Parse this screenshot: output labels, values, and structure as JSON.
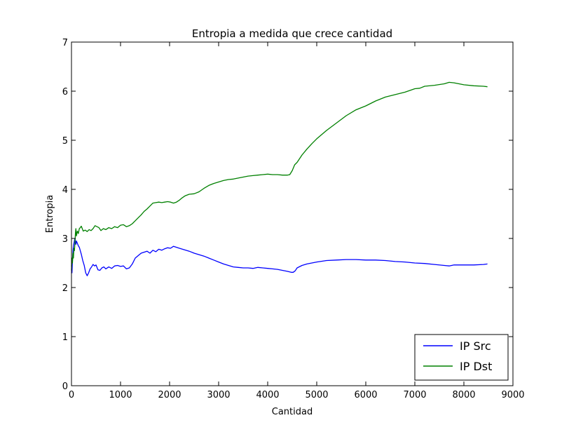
{
  "chart_data": {
    "type": "line",
    "title": "Entropia a medida que crece cantidad",
    "xlabel": "Cantidad",
    "ylabel": "Entropia",
    "xlim": [
      0,
      9000
    ],
    "ylim": [
      0,
      7
    ],
    "xticks": [
      0,
      1000,
      2000,
      3000,
      4000,
      5000,
      6000,
      7000,
      8000,
      9000
    ],
    "xtick_labels": [
      "0",
      "1000",
      "2000",
      "3000",
      "4000",
      "5000",
      "6000",
      "7000",
      "8000",
      "9000"
    ],
    "yticks": [
      0,
      1,
      2,
      3,
      4,
      5,
      6,
      7
    ],
    "ytick_labels": [
      "0",
      "1",
      "2",
      "3",
      "4",
      "5",
      "6",
      "7"
    ],
    "grid": false,
    "legend_position": "lower-right",
    "series": [
      {
        "name": "IP Src",
        "color": "#0000ff",
        "x": [
          0,
          10,
          20,
          30,
          40,
          50,
          60,
          70,
          80,
          90,
          100,
          120,
          140,
          160,
          180,
          200,
          230,
          260,
          290,
          320,
          350,
          380,
          410,
          440,
          470,
          500,
          540,
          580,
          620,
          660,
          700,
          760,
          820,
          880,
          940,
          1000,
          1060,
          1120,
          1180,
          1240,
          1300,
          1360,
          1420,
          1480,
          1540,
          1600,
          1660,
          1720,
          1780,
          1840,
          1900,
          1960,
          2020,
          2080,
          2140,
          2200,
          2300,
          2400,
          2500,
          2600,
          2700,
          2800,
          2900,
          3000,
          3100,
          3200,
          3300,
          3400,
          3500,
          3600,
          3700,
          3800,
          3900,
          4000,
          4100,
          4200,
          4300,
          4400,
          4480,
          4520,
          4560,
          4600,
          4700,
          4800,
          4900,
          5000,
          5200,
          5400,
          5600,
          5800,
          6000,
          6200,
          6400,
          6600,
          6800,
          7000,
          7200,
          7400,
          7600,
          7700,
          7800,
          8000,
          8200,
          8400,
          8480
        ],
        "y": [
          2.45,
          2.3,
          2.55,
          2.75,
          2.85,
          2.9,
          2.95,
          3.0,
          2.92,
          2.88,
          2.95,
          2.9,
          2.85,
          2.82,
          2.75,
          2.68,
          2.55,
          2.45,
          2.3,
          2.24,
          2.3,
          2.38,
          2.42,
          2.47,
          2.44,
          2.46,
          2.36,
          2.35,
          2.4,
          2.42,
          2.38,
          2.42,
          2.39,
          2.44,
          2.45,
          2.43,
          2.44,
          2.38,
          2.4,
          2.48,
          2.6,
          2.65,
          2.7,
          2.72,
          2.74,
          2.7,
          2.76,
          2.73,
          2.78,
          2.76,
          2.79,
          2.81,
          2.8,
          2.84,
          2.82,
          2.8,
          2.77,
          2.74,
          2.7,
          2.67,
          2.64,
          2.6,
          2.56,
          2.52,
          2.48,
          2.45,
          2.42,
          2.41,
          2.4,
          2.4,
          2.39,
          2.41,
          2.4,
          2.39,
          2.38,
          2.37,
          2.35,
          2.33,
          2.31,
          2.31,
          2.34,
          2.4,
          2.45,
          2.48,
          2.5,
          2.52,
          2.55,
          2.56,
          2.57,
          2.57,
          2.56,
          2.56,
          2.55,
          2.53,
          2.52,
          2.5,
          2.49,
          2.47,
          2.45,
          2.44,
          2.46,
          2.46,
          2.46,
          2.47,
          2.48
        ]
      },
      {
        "name": "IP Dst",
        "color": "#008000",
        "x": [
          0,
          10,
          20,
          30,
          40,
          50,
          60,
          70,
          80,
          90,
          100,
          120,
          140,
          160,
          180,
          200,
          240,
          280,
          320,
          360,
          400,
          440,
          480,
          520,
          560,
          600,
          650,
          700,
          760,
          820,
          880,
          940,
          1000,
          1060,
          1120,
          1180,
          1240,
          1300,
          1360,
          1420,
          1480,
          1540,
          1600,
          1660,
          1720,
          1780,
          1840,
          1900,
          1960,
          2020,
          2080,
          2140,
          2200,
          2260,
          2320,
          2400,
          2500,
          2600,
          2700,
          2800,
          2900,
          3000,
          3100,
          3200,
          3300,
          3400,
          3500,
          3600,
          3700,
          3800,
          3900,
          4000,
          4100,
          4200,
          4300,
          4400,
          4450,
          4500,
          4550,
          4600,
          4700,
          4800,
          4900,
          5000,
          5200,
          5400,
          5600,
          5800,
          6000,
          6200,
          6400,
          6600,
          6800,
          7000,
          7100,
          7200,
          7400,
          7600,
          7700,
          7800,
          8000,
          8200,
          8400,
          8480
        ],
        "y": [
          2.35,
          2.6,
          2.5,
          2.7,
          2.6,
          2.8,
          2.75,
          2.9,
          3.1,
          3.2,
          3.05,
          3.15,
          3.1,
          3.2,
          3.22,
          3.25,
          3.15,
          3.17,
          3.14,
          3.18,
          3.16,
          3.2,
          3.26,
          3.24,
          3.22,
          3.16,
          3.2,
          3.18,
          3.22,
          3.2,
          3.24,
          3.22,
          3.27,
          3.28,
          3.24,
          3.26,
          3.3,
          3.36,
          3.42,
          3.48,
          3.55,
          3.6,
          3.66,
          3.72,
          3.73,
          3.74,
          3.73,
          3.74,
          3.75,
          3.74,
          3.72,
          3.74,
          3.78,
          3.83,
          3.87,
          3.9,
          3.91,
          3.95,
          4.02,
          4.08,
          4.12,
          4.15,
          4.18,
          4.2,
          4.21,
          4.23,
          4.25,
          4.27,
          4.28,
          4.29,
          4.3,
          4.31,
          4.3,
          4.3,
          4.29,
          4.29,
          4.3,
          4.38,
          4.5,
          4.55,
          4.7,
          4.82,
          4.93,
          5.03,
          5.2,
          5.35,
          5.5,
          5.62,
          5.7,
          5.8,
          5.88,
          5.93,
          5.98,
          6.05,
          6.06,
          6.1,
          6.12,
          6.15,
          6.18,
          6.17,
          6.13,
          6.11,
          6.1,
          6.09
        ]
      }
    ]
  }
}
